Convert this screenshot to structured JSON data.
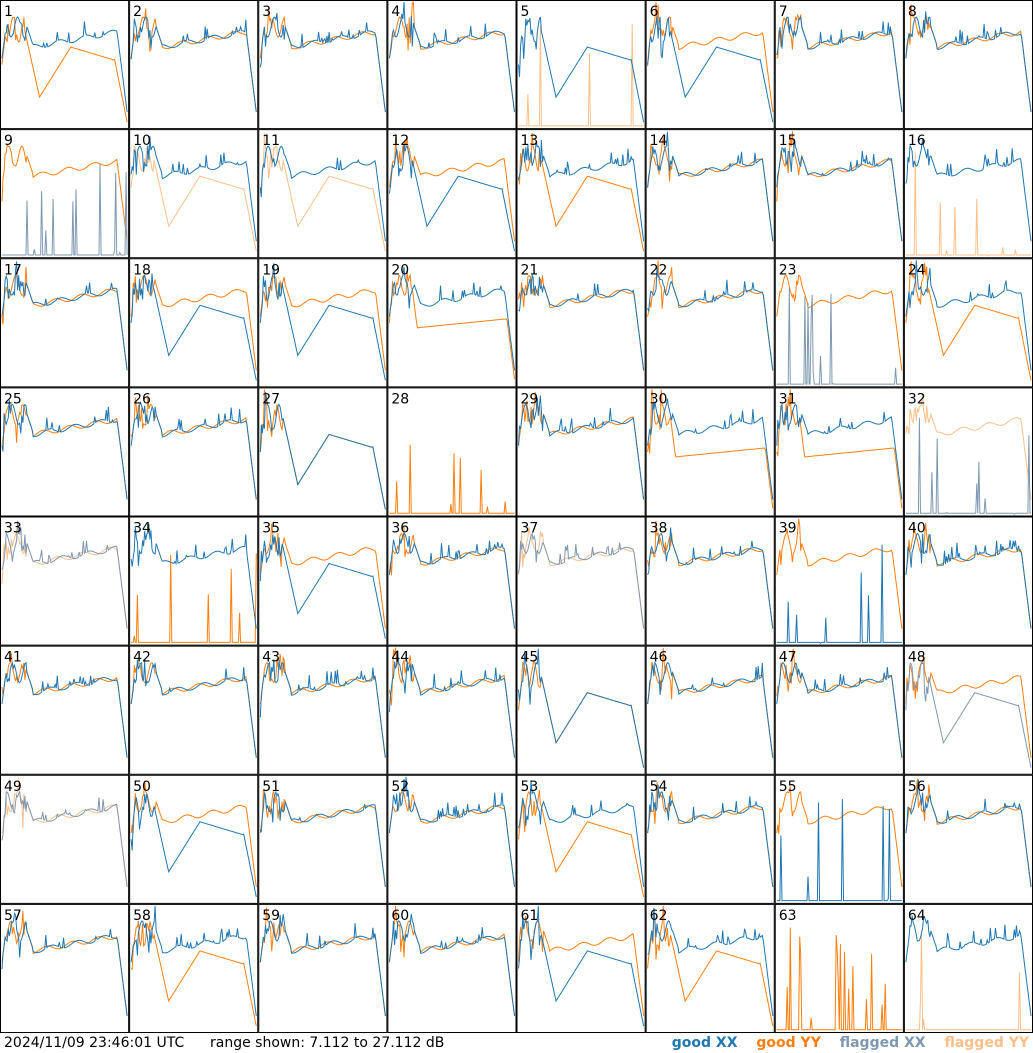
{
  "footer": {
    "timestamp": "2024/11/09 23:46:01 UTC",
    "range": "range shown: 7.112 to 27.112 dB"
  },
  "chart_data": {
    "type": "line",
    "layout": "8x8 small multiples of per-antenna spectra",
    "units": "dB",
    "ylim": [
      7.112,
      27.112
    ],
    "legend": [
      {
        "key": "good_xx",
        "label": "good XX",
        "color": "#1f77b4"
      },
      {
        "key": "good_yy",
        "label": "good YY",
        "color": "#ff7f0e"
      },
      {
        "key": "flagged_xx",
        "label": "flagged XX",
        "color": "#7f98b2"
      },
      {
        "key": "flagged_yy",
        "label": "flagged YY",
        "color": "#ffbf8a"
      }
    ],
    "panel_labels": [
      "1",
      "2",
      "3",
      "4",
      "5",
      "6",
      "7",
      "8",
      "9",
      "10",
      "11",
      "12",
      "13",
      "14",
      "15",
      "16",
      "17",
      "18",
      "19",
      "20",
      "21",
      "22",
      "23",
      "24",
      "25",
      "26",
      "27",
      "28",
      "29",
      "30",
      "31",
      "32",
      "33",
      "34",
      "35",
      "36",
      "37",
      "38",
      "39",
      "40",
      "41",
      "42",
      "43",
      "44",
      "45",
      "46",
      "47",
      "48",
      "49",
      "50",
      "51",
      "52",
      "53",
      "54",
      "55",
      "56",
      "57",
      "58",
      "59",
      "60",
      "61",
      "62",
      "63",
      "64"
    ],
    "panels": [
      {
        "n": 1,
        "xx": "normal",
        "yy": "dip",
        "xx_flag": false,
        "yy_flag": false
      },
      {
        "n": 2,
        "xx": "normal",
        "yy": "normal",
        "xx_flag": false,
        "yy_flag": false
      },
      {
        "n": 3,
        "xx": "normal",
        "yy": "normal",
        "xx_flag": false,
        "yy_flag": false
      },
      {
        "n": 4,
        "xx": "normal",
        "yy": "normal",
        "xx_flag": false,
        "yy_flag": false
      },
      {
        "n": 5,
        "xx": "dip",
        "yy": "dead",
        "xx_flag": false,
        "yy_flag": true
      },
      {
        "n": 6,
        "xx": "dip",
        "yy": "normal",
        "xx_flag": false,
        "yy_flag": false
      },
      {
        "n": 7,
        "xx": "normal",
        "yy": "normal",
        "xx_flag": false,
        "yy_flag": false
      },
      {
        "n": 8,
        "xx": "normal",
        "yy": "normal",
        "xx_flag": false,
        "yy_flag": false
      },
      {
        "n": 9,
        "xx": "dead",
        "yy": "normal",
        "xx_flag": true,
        "yy_flag": false
      },
      {
        "n": 10,
        "xx": "normal",
        "yy": "dip",
        "xx_flag": false,
        "yy_flag": true
      },
      {
        "n": 11,
        "xx": "normal",
        "yy": "dip",
        "xx_flag": false,
        "yy_flag": true
      },
      {
        "n": 12,
        "xx": "dip",
        "yy": "normal",
        "xx_flag": false,
        "yy_flag": false
      },
      {
        "n": 13,
        "xx": "normal",
        "yy": "dip",
        "xx_flag": false,
        "yy_flag": false
      },
      {
        "n": 14,
        "xx": "normal",
        "yy": "normal",
        "xx_flag": false,
        "yy_flag": false
      },
      {
        "n": 15,
        "xx": "normal",
        "yy": "normal",
        "xx_flag": false,
        "yy_flag": false
      },
      {
        "n": 16,
        "xx": "normal",
        "yy": "dead",
        "xx_flag": false,
        "yy_flag": true
      },
      {
        "n": 17,
        "xx": "normal",
        "yy": "normal",
        "xx_flag": false,
        "yy_flag": false
      },
      {
        "n": 18,
        "xx": "dip",
        "yy": "normal",
        "xx_flag": false,
        "yy_flag": false
      },
      {
        "n": 19,
        "xx": "dip",
        "yy": "normal",
        "xx_flag": false,
        "yy_flag": false
      },
      {
        "n": 20,
        "xx": "normal",
        "yy": "low",
        "xx_flag": false,
        "yy_flag": false
      },
      {
        "n": 21,
        "xx": "normal",
        "yy": "normal",
        "xx_flag": false,
        "yy_flag": false
      },
      {
        "n": 22,
        "xx": "normal",
        "yy": "normal",
        "xx_flag": false,
        "yy_flag": false
      },
      {
        "n": 23,
        "xx": "dead",
        "yy": "normal",
        "xx_flag": true,
        "yy_flag": false
      },
      {
        "n": 24,
        "xx": "normal",
        "yy": "dip",
        "xx_flag": false,
        "yy_flag": false
      },
      {
        "n": 25,
        "xx": "normal",
        "yy": "normal",
        "xx_flag": false,
        "yy_flag": false
      },
      {
        "n": 26,
        "xx": "normal",
        "yy": "normal",
        "xx_flag": false,
        "yy_flag": false
      },
      {
        "n": 27,
        "xx": "dip",
        "yy": "dip",
        "xx_flag": false,
        "yy_flag": false
      },
      {
        "n": 28,
        "xx": "none",
        "yy": "dead",
        "xx_flag": false,
        "yy_flag": false
      },
      {
        "n": 29,
        "xx": "normal",
        "yy": "normal",
        "xx_flag": false,
        "yy_flag": false
      },
      {
        "n": 30,
        "xx": "normal",
        "yy": "low",
        "xx_flag": false,
        "yy_flag": false
      },
      {
        "n": 31,
        "xx": "normal",
        "yy": "low",
        "xx_flag": false,
        "yy_flag": false
      },
      {
        "n": 32,
        "xx": "dead",
        "yy": "normal",
        "xx_flag": true,
        "yy_flag": true
      },
      {
        "n": 33,
        "xx": "normal",
        "yy": "normal",
        "xx_flag": true,
        "yy_flag": true
      },
      {
        "n": 34,
        "xx": "normal",
        "yy": "dead",
        "xx_flag": false,
        "yy_flag": false
      },
      {
        "n": 35,
        "xx": "dip",
        "yy": "normal",
        "xx_flag": false,
        "yy_flag": false
      },
      {
        "n": 36,
        "xx": "normal",
        "yy": "normal",
        "xx_flag": false,
        "yy_flag": false
      },
      {
        "n": 37,
        "xx": "normal",
        "yy": "normal",
        "xx_flag": true,
        "yy_flag": true
      },
      {
        "n": 38,
        "xx": "normal",
        "yy": "normal",
        "xx_flag": false,
        "yy_flag": false
      },
      {
        "n": 39,
        "xx": "dead",
        "yy": "normal",
        "xx_flag": false,
        "yy_flag": false
      },
      {
        "n": 40,
        "xx": "normal",
        "yy": "normal",
        "xx_flag": false,
        "yy_flag": false
      },
      {
        "n": 41,
        "xx": "normal",
        "yy": "normal",
        "xx_flag": false,
        "yy_flag": false
      },
      {
        "n": 42,
        "xx": "normal",
        "yy": "normal",
        "xx_flag": false,
        "yy_flag": false
      },
      {
        "n": 43,
        "xx": "normal",
        "yy": "normal",
        "xx_flag": false,
        "yy_flag": false
      },
      {
        "n": 44,
        "xx": "normal",
        "yy": "normal",
        "xx_flag": false,
        "yy_flag": false
      },
      {
        "n": 45,
        "xx": "dip",
        "yy": "dip",
        "xx_flag": false,
        "yy_flag": false
      },
      {
        "n": 46,
        "xx": "normal",
        "yy": "normal",
        "xx_flag": false,
        "yy_flag": false
      },
      {
        "n": 47,
        "xx": "normal",
        "yy": "normal",
        "xx_flag": false,
        "yy_flag": false
      },
      {
        "n": 48,
        "xx": "dip",
        "yy": "normal",
        "xx_flag": true,
        "yy_flag": false
      },
      {
        "n": 49,
        "xx": "normal",
        "yy": "normal",
        "xx_flag": true,
        "yy_flag": true
      },
      {
        "n": 50,
        "xx": "dip",
        "yy": "normal",
        "xx_flag": false,
        "yy_flag": false
      },
      {
        "n": 51,
        "xx": "normal",
        "yy": "normal",
        "xx_flag": false,
        "yy_flag": false
      },
      {
        "n": 52,
        "xx": "normal",
        "yy": "normal",
        "xx_flag": false,
        "yy_flag": false
      },
      {
        "n": 53,
        "xx": "normal",
        "yy": "dip",
        "xx_flag": false,
        "yy_flag": false
      },
      {
        "n": 54,
        "xx": "normal",
        "yy": "normal",
        "xx_flag": false,
        "yy_flag": false
      },
      {
        "n": 55,
        "xx": "dead",
        "yy": "normal",
        "xx_flag": false,
        "yy_flag": false
      },
      {
        "n": 56,
        "xx": "normal",
        "yy": "normal",
        "xx_flag": false,
        "yy_flag": false
      },
      {
        "n": 57,
        "xx": "normal",
        "yy": "normal",
        "xx_flag": false,
        "yy_flag": false
      },
      {
        "n": 58,
        "xx": "normal",
        "yy": "dip",
        "xx_flag": false,
        "yy_flag": false
      },
      {
        "n": 59,
        "xx": "normal",
        "yy": "normal",
        "xx_flag": false,
        "yy_flag": false
      },
      {
        "n": 60,
        "xx": "normal",
        "yy": "normal",
        "xx_flag": false,
        "yy_flag": false
      },
      {
        "n": 61,
        "xx": "dip",
        "yy": "normal",
        "xx_flag": false,
        "yy_flag": false
      },
      {
        "n": 62,
        "xx": "normal",
        "yy": "dip",
        "xx_flag": false,
        "yy_flag": false
      },
      {
        "n": 63,
        "xx": "none",
        "yy": "dead",
        "xx_flag": false,
        "yy_flag": false
      },
      {
        "n": 64,
        "xx": "normal",
        "yy": "dead",
        "xx_flag": false,
        "yy_flag": true
      }
    ]
  }
}
